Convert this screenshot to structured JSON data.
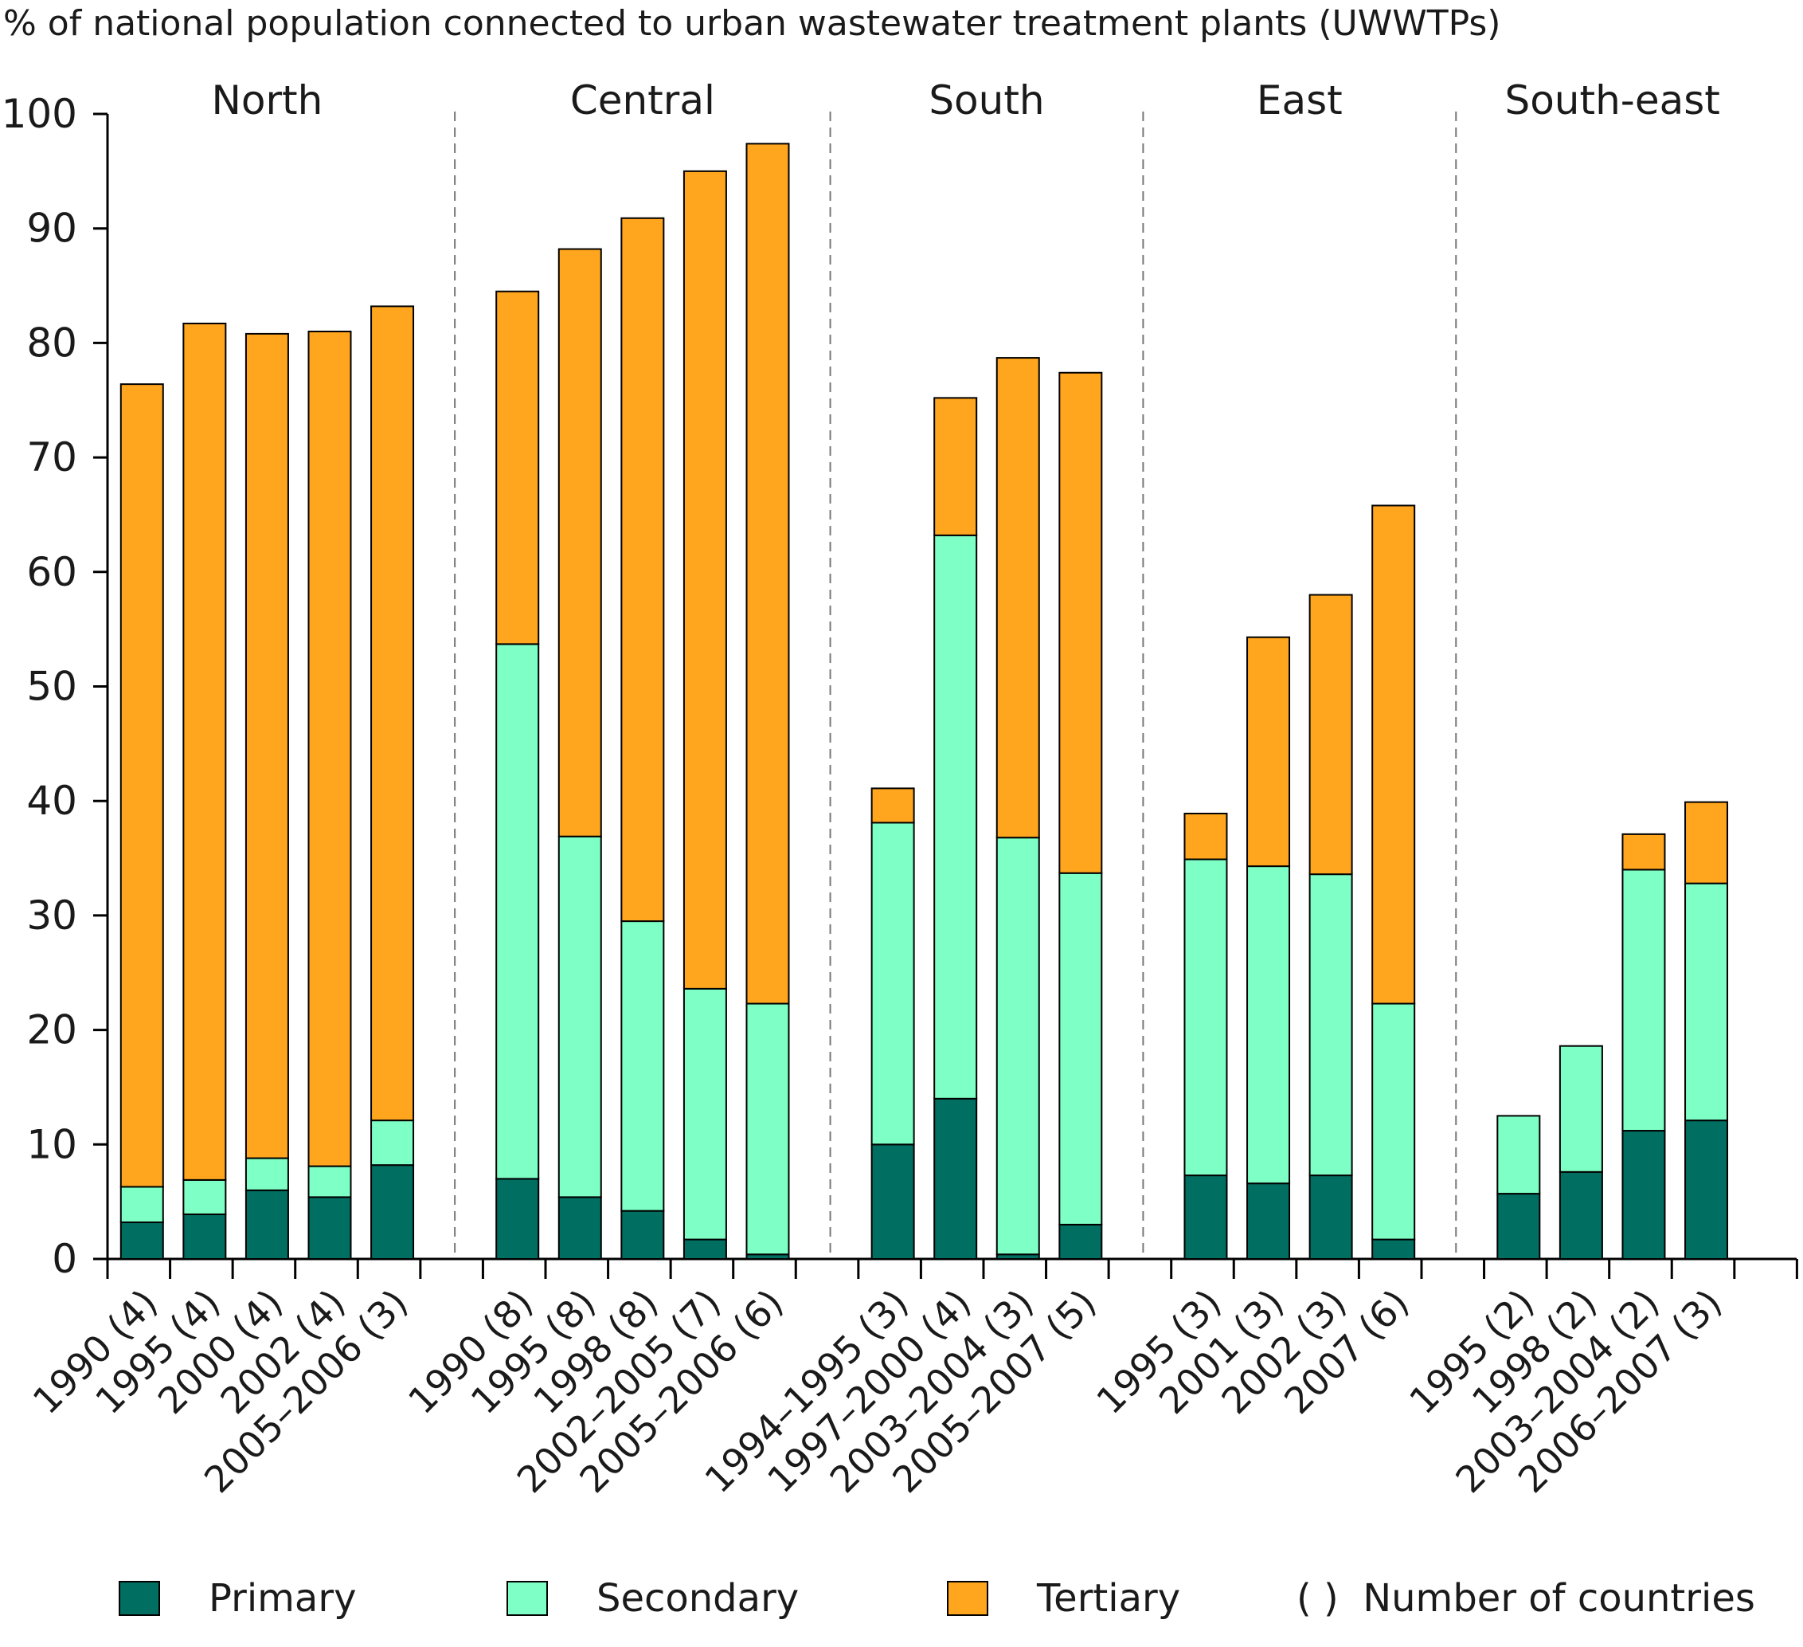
{
  "chart_data": {
    "type": "bar",
    "stacked": true,
    "title": "% of national population connected to urban wastewater treatment plants (UWWTPs)",
    "ylim": [
      0,
      100
    ],
    "yticks": [
      0,
      10,
      20,
      30,
      40,
      50,
      60,
      70,
      80,
      90,
      100
    ],
    "grid": false,
    "legend_position": "bottom",
    "series": [
      {
        "name": "Primary",
        "color": "#006e60"
      },
      {
        "name": "Secondary",
        "color": "#7dffc5"
      },
      {
        "name": "Tertiary",
        "color": "#ffa51e"
      }
    ],
    "legend_note": "( )  Number of countries",
    "groups": [
      {
        "name": "North",
        "bars": [
          {
            "label": "1990 (4)",
            "values": [
              3.2,
              3.1,
              70.1
            ]
          },
          {
            "label": "1995 (4)",
            "values": [
              3.9,
              3.0,
              74.8
            ]
          },
          {
            "label": "2000 (4)",
            "values": [
              6.0,
              2.8,
              72.0
            ]
          },
          {
            "label": "2002 (4)",
            "values": [
              5.4,
              2.7,
              72.9
            ]
          },
          {
            "label": "2005–2006 (3)",
            "values": [
              8.2,
              3.9,
              71.1
            ]
          }
        ]
      },
      {
        "name": "Central",
        "bars": [
          {
            "label": "1990 (8)",
            "values": [
              7.0,
              46.7,
              30.8
            ]
          },
          {
            "label": "1995 (8)",
            "values": [
              5.4,
              31.5,
              51.3
            ]
          },
          {
            "label": "1998 (8)",
            "values": [
              4.2,
              25.3,
              61.4
            ]
          },
          {
            "label": "2002–2005 (7)",
            "values": [
              1.7,
              21.9,
              71.4
            ]
          },
          {
            "label": "2005–2006 (6)",
            "values": [
              0.4,
              21.9,
              75.1
            ]
          }
        ]
      },
      {
        "name": "South",
        "bars": [
          {
            "label": "1994–1995 (3)",
            "values": [
              10.0,
              28.1,
              3.0
            ]
          },
          {
            "label": "1997–2000 (4)",
            "values": [
              14.0,
              49.2,
              12.0
            ]
          },
          {
            "label": "2003–2004 (3)",
            "values": [
              0.4,
              36.4,
              41.9
            ]
          },
          {
            "label": "2005–2007 (5)",
            "values": [
              3.0,
              30.7,
              43.7
            ]
          }
        ]
      },
      {
        "name": "East",
        "bars": [
          {
            "label": "1995 (3)",
            "values": [
              7.3,
              27.6,
              4.0
            ]
          },
          {
            "label": "2001 (3)",
            "values": [
              6.6,
              27.7,
              20.0
            ]
          },
          {
            "label": "2002 (3)",
            "values": [
              7.3,
              26.3,
              24.4
            ]
          },
          {
            "label": "2007 (6)",
            "values": [
              1.7,
              20.6,
              43.5
            ]
          }
        ]
      },
      {
        "name": "South-east",
        "bars": [
          {
            "label": "1995 (2)",
            "values": [
              5.7,
              6.8,
              0.0
            ]
          },
          {
            "label": "1998 (2)",
            "values": [
              7.6,
              11.0,
              0.0
            ]
          },
          {
            "label": "2003–2004 (2)",
            "values": [
              11.2,
              22.8,
              3.1
            ]
          },
          {
            "label": "2006–2007 (3)",
            "values": [
              12.1,
              20.7,
              7.1
            ]
          }
        ]
      }
    ]
  }
}
